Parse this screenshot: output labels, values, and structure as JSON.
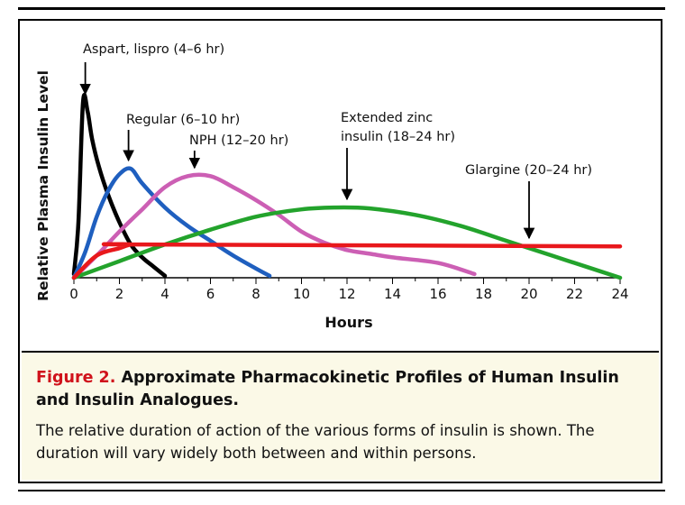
{
  "chart_data": {
    "type": "line",
    "xlabel": "Hours",
    "ylabel": "Relative Plasma Insulin Level",
    "xlim": [
      0,
      24
    ],
    "ylim": [
      0,
      100
    ],
    "xticks": [
      0,
      2,
      4,
      6,
      8,
      10,
      12,
      14,
      16,
      18,
      20,
      22,
      24
    ],
    "series": [
      {
        "color": "#000000",
        "values": [
          [
            0,
            2
          ],
          [
            0.2,
            30
          ],
          [
            0.4,
            95
          ],
          [
            0.6,
            90
          ],
          [
            0.8,
            75
          ],
          [
            1.1,
            60
          ],
          [
            1.5,
            45
          ],
          [
            2,
            30
          ],
          [
            2.5,
            18
          ],
          [
            3,
            11
          ],
          [
            3.5,
            6
          ],
          [
            4,
            1
          ]
        ]
      },
      {
        "color": "#1f5fbf",
        "values": [
          [
            0,
            0
          ],
          [
            0.5,
            14
          ],
          [
            1,
            33
          ],
          [
            1.5,
            47
          ],
          [
            2,
            56
          ],
          [
            2.5,
            59
          ],
          [
            3,
            51
          ],
          [
            4,
            38
          ],
          [
            5,
            28
          ],
          [
            6,
            20
          ],
          [
            7,
            12
          ],
          [
            8,
            5
          ],
          [
            8.6,
            1
          ]
        ]
      },
      {
        "color": "#cc5fb4",
        "values": [
          [
            0,
            0
          ],
          [
            1,
            12
          ],
          [
            2,
            25
          ],
          [
            3,
            37
          ],
          [
            4,
            49
          ],
          [
            5,
            55
          ],
          [
            6,
            55
          ],
          [
            7,
            49
          ],
          [
            8,
            42
          ],
          [
            9,
            34
          ],
          [
            10,
            25
          ],
          [
            11,
            19
          ],
          [
            12,
            15
          ],
          [
            13,
            13
          ],
          [
            14,
            11
          ],
          [
            16,
            8
          ],
          [
            17.6,
            2
          ]
        ]
      },
      {
        "color": "#23a32c",
        "values": [
          [
            0,
            0
          ],
          [
            2,
            9
          ],
          [
            4,
            18
          ],
          [
            6,
            26
          ],
          [
            8,
            33
          ],
          [
            10,
            37
          ],
          [
            11.5,
            38
          ],
          [
            13,
            37.5
          ],
          [
            15,
            34
          ],
          [
            17,
            28
          ],
          [
            19,
            20
          ],
          [
            21,
            12
          ],
          [
            23,
            4
          ],
          [
            24,
            0
          ]
        ]
      },
      {
        "color": "#e8181c",
        "values": [
          [
            0,
            0
          ],
          [
            1,
            12
          ],
          [
            2,
            16
          ],
          [
            2.5,
            18
          ],
          [
            3,
            18
          ],
          [
            24,
            17
          ]
        ]
      }
    ],
    "annotations": [
      {
        "text": "Aspart, lispro (4–6 hr)",
        "arrow_to": [
          0.5,
          98
        ]
      },
      {
        "text": "Regular (6–10 hr)",
        "arrow_to": [
          2.4,
          62
        ]
      },
      {
        "text": "NPH (12–20 hr)",
        "arrow_to": [
          5.3,
          58
        ]
      },
      {
        "text_lines": [
          "Extended zinc",
          "insulin (18–24 hr)"
        ],
        "arrow_to": [
          12,
          41
        ]
      },
      {
        "text": "Glargine (20–24 hr)",
        "arrow_to": [
          20,
          20
        ]
      }
    ]
  },
  "caption": {
    "figure_label": "Figure 2.",
    "title": "Approximate Pharmacokinetic Profiles of Human Insulin and Insulin Analogues.",
    "body": "The relative duration of action of the various forms of insulin is shown. The duration will vary widely both between and within persons."
  }
}
